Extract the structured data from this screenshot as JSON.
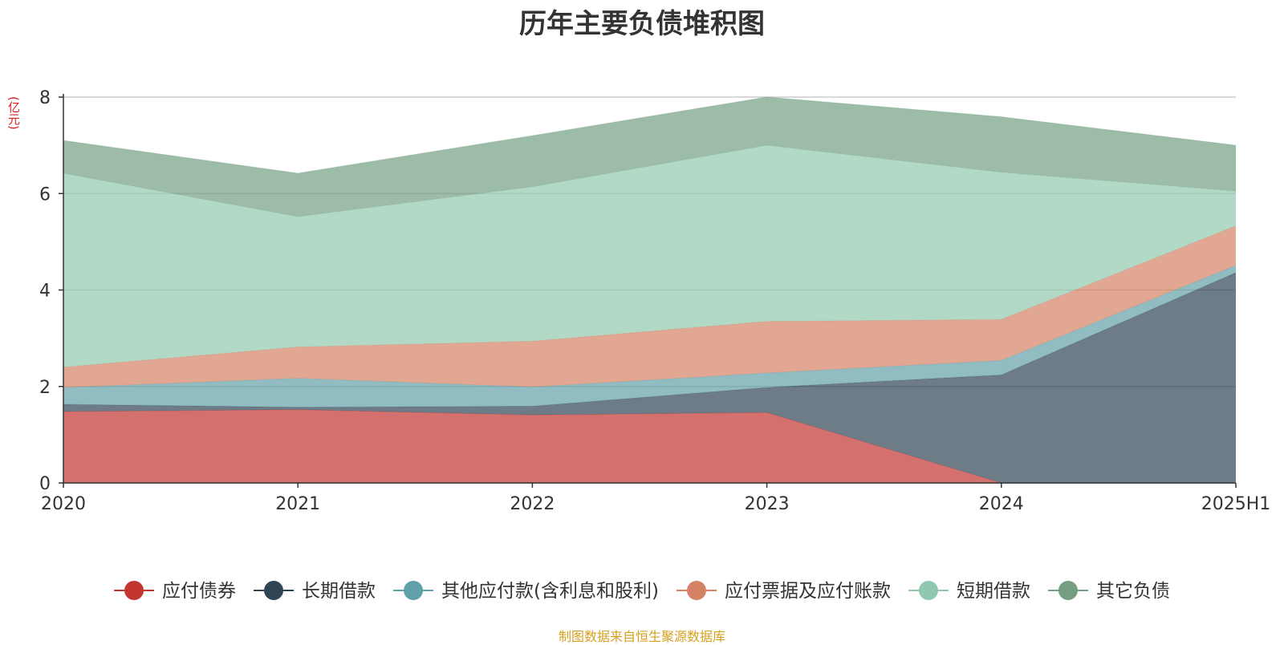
{
  "chart_data": {
    "type": "area",
    "stacked": true,
    "title": "历年主要负债堆积图",
    "unit": "(亿元)",
    "source": "制图数据来自恒生聚源数据库",
    "categories": [
      "2020",
      "2021",
      "2022",
      "2023",
      "2024",
      "2025H1"
    ],
    "ylim": [
      0,
      8
    ],
    "yticks": [
      "0",
      "2",
      "4",
      "6",
      "8"
    ],
    "grid": true,
    "legend_position": "bottom",
    "series": [
      {
        "name": "应付债券",
        "color": "#c23531",
        "values": [
          1.48,
          1.52,
          1.41,
          1.46,
          0.0,
          0.0
        ]
      },
      {
        "name": "长期借款",
        "color": "#2f4554",
        "values": [
          0.15,
          0.05,
          0.18,
          0.52,
          2.24,
          4.36
        ]
      },
      {
        "name": "其他应付款(含利息和股利)",
        "color": "#61a0a8",
        "values": [
          0.35,
          0.6,
          0.4,
          0.3,
          0.3,
          0.15
        ]
      },
      {
        "name": "应付票据及应付账款",
        "color": "#d48265",
        "values": [
          0.42,
          0.65,
          0.95,
          1.07,
          0.85,
          0.82
        ]
      },
      {
        "name": "短期借款",
        "color": "#91c7ae",
        "values": [
          4.02,
          2.7,
          3.2,
          3.65,
          3.05,
          0.72
        ]
      },
      {
        "name": "其它负债",
        "color": "#749f83",
        "values": [
          0.68,
          0.9,
          1.06,
          1.0,
          1.15,
          0.95
        ]
      }
    ]
  }
}
